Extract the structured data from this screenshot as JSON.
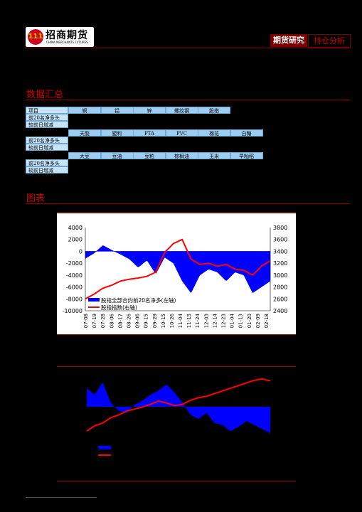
{
  "header": {
    "logo_emblem": "111",
    "logo_cn": "招商期货",
    "logo_en": "CHINA MERCHANTS FUTURES",
    "tab_research": "期货研究",
    "tab_position": "持仓分析"
  },
  "sections": {
    "data_summary": "数据汇总",
    "charts": "图表"
  },
  "table": {
    "row_label_item": "项目",
    "row_label_net": "前20名净多头",
    "row_label_change": "较前日增减",
    "group1": [
      "铜",
      "铝",
      "锌",
      "螺纹钢",
      "股指"
    ],
    "group2": [
      "天胶",
      "塑料",
      "PTA",
      "PVC",
      "棉花",
      "白糖"
    ],
    "group3": [
      "大豆",
      "豆油",
      "豆粕",
      "棕榈油",
      "玉米",
      "早籼稻"
    ]
  },
  "colors": {
    "accent": "#cc0000",
    "bar": "#0000ff",
    "line": "#ff0000",
    "table_header": "#9fcdf0",
    "table_label": "#c9e3f6"
  },
  "chart_data": [
    {
      "type": "area",
      "title": "",
      "x": [
        "07-08",
        "07-19",
        "07-28",
        "08-06",
        "08-17",
        "08-26",
        "09-06",
        "09-15",
        "09-29",
        "10-15",
        "10-26",
        "11-04",
        "11-15",
        "11-24",
        "12-03",
        "12-14",
        "12-23",
        "01-04",
        "01-13",
        "01-20",
        "02-09",
        "02-18"
      ],
      "y_left_ticks": [
        4000,
        2000,
        0,
        -2000,
        -4000,
        -6000,
        -8000,
        -10000
      ],
      "y_right_ticks": [
        3800,
        3600,
        3400,
        3200,
        3000,
        2800,
        2600,
        2400
      ],
      "ylim_left": [
        -10000,
        4000
      ],
      "ylim_right": [
        2400,
        3800
      ],
      "series": [
        {
          "name": "股指全部合约前20名净多(左轴)",
          "axis": "left",
          "type": "area",
          "values": [
            -1200,
            -300,
            1000,
            200,
            -500,
            -1300,
            -2700,
            -1500,
            -3800,
            -1000,
            -2000,
            -5000,
            -7000,
            -4000,
            -3000,
            -3500,
            -5000,
            -3500,
            -4000,
            -7000,
            -6000,
            -5000
          ]
        },
        {
          "name": "股指指数(右轴)",
          "axis": "right",
          "type": "line",
          "values": [
            2600,
            2680,
            2780,
            2830,
            2900,
            2930,
            2950,
            2980,
            3050,
            3380,
            3530,
            3600,
            3270,
            3180,
            3200,
            3150,
            3180,
            3100,
            3080,
            3000,
            3150,
            3240
          ]
        }
      ],
      "legend": "lower-left"
    },
    {
      "type": "area",
      "title": "",
      "series": [
        {
          "name": "",
          "type": "area",
          "values": [
            900,
            600,
            1200,
            200,
            -200,
            -300,
            100,
            300,
            600,
            800,
            1100,
            700,
            200,
            -400,
            -600,
            -300,
            -800,
            -900,
            -1200,
            -1000,
            -700,
            -900,
            -1100,
            -1300
          ]
        },
        {
          "name": "",
          "type": "line",
          "values": [
            20,
            28,
            32,
            40,
            44,
            50,
            53,
            56,
            60,
            65,
            62,
            58,
            60,
            66,
            70,
            72,
            76,
            80,
            84,
            88,
            92,
            96,
            98,
            95
          ]
        }
      ],
      "legend": "lower-left"
    }
  ]
}
